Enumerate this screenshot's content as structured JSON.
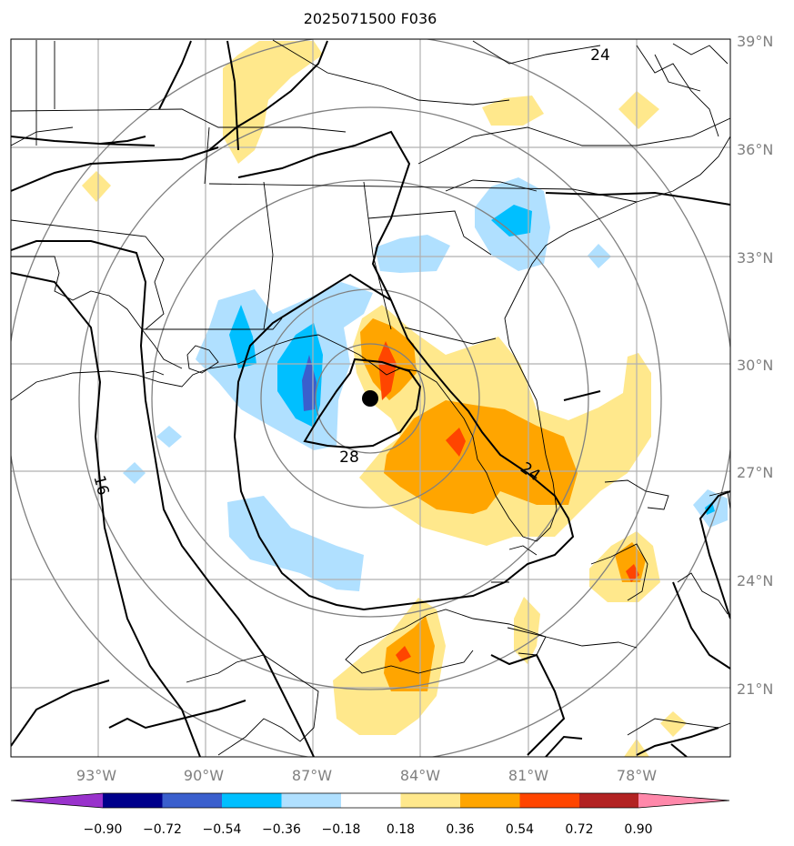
{
  "title": "2025071500 F036",
  "longitude_labels": [
    "93°W",
    "90°W",
    "87°W",
    "84°W",
    "81°W",
    "78°W"
  ],
  "latitude_labels": [
    "39°N",
    "36°N",
    "33°N",
    "30°N",
    "27°N",
    "24°N",
    "21°N"
  ],
  "contour_labels": [
    "24",
    "16",
    "28",
    "24"
  ],
  "colorbar": {
    "ticks": [
      "−0.90",
      "−0.72",
      "−0.54",
      "−0.36",
      "−0.18",
      "0.18",
      "0.36",
      "0.54",
      "0.72",
      "0.90"
    ],
    "colors": [
      "#9932cc",
      "#00008b",
      "#3a5fcd",
      "#00bfff",
      "#b0e0ff",
      "#ffffff",
      "#ffe88c",
      "#ffa500",
      "#ff4500",
      "#b22222",
      "#ff88aa"
    ]
  },
  "storm_center_marker": "filled-black-dot",
  "colors": {
    "negative_light": "#b0e0ff",
    "negative_mid": "#00bfff",
    "negative_dark": "#3a5fcd",
    "positive_light": "#ffe88c",
    "positive_mid": "#ffa500",
    "positive_dark": "#ff4500",
    "gridline": "#b0b0b0",
    "range_ring": "#808080"
  }
}
